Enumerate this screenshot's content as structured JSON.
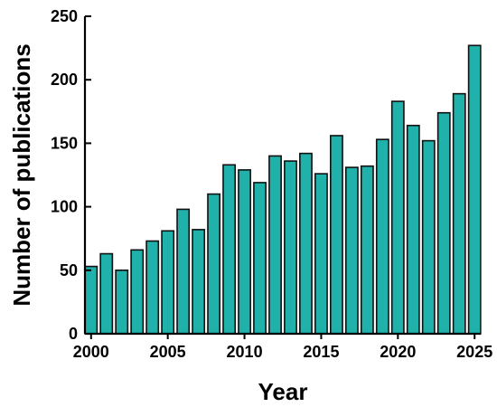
{
  "chart_data": {
    "type": "bar",
    "title": "",
    "xlabel": "Year",
    "ylabel": "Number of publications",
    "x": [
      2000,
      2001,
      2002,
      2003,
      2004,
      2005,
      2006,
      2007,
      2008,
      2009,
      2010,
      2011,
      2012,
      2013,
      2014,
      2015,
      2016,
      2017,
      2018,
      2019,
      2020,
      2021,
      2022,
      2023,
      2024,
      2025
    ],
    "values": [
      53,
      63,
      50,
      66,
      73,
      81,
      98,
      82,
      110,
      133,
      129,
      119,
      140,
      136,
      142,
      126,
      156,
      131,
      132,
      153,
      183,
      164,
      152,
      174,
      189,
      227
    ],
    "ylim": [
      0,
      250
    ],
    "xlim": [
      1999.6,
      2025.4
    ],
    "yticks": [
      0,
      50,
      100,
      150,
      200,
      250
    ],
    "xticks": [
      2000,
      2005,
      2010,
      2015,
      2020,
      2025
    ],
    "grid": false,
    "bar_color": "#20B2AA",
    "bar_edge_color": "#111111"
  }
}
